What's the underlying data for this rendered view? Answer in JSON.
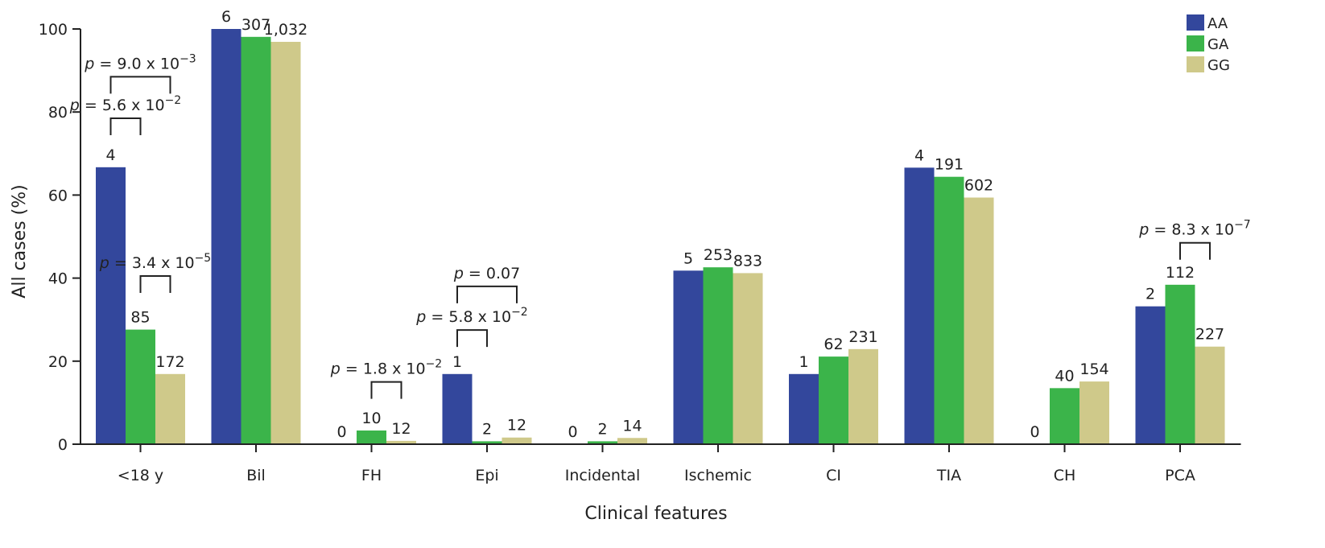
{
  "chart_data": {
    "type": "bar",
    "xlabel": "Clinical features",
    "ylabel": "All cases (%)",
    "ylim": [
      0,
      100
    ],
    "yticks": [
      0,
      20,
      40,
      60,
      80,
      100
    ],
    "grid": false,
    "legend_position": "top-right",
    "categories": [
      "<18 y",
      "Bil",
      "FH",
      "Epi",
      "Incidental",
      "Ischemic",
      "CI",
      "TIA",
      "CH",
      "PCA"
    ],
    "series": [
      {
        "name": "AA",
        "color": "#33479C",
        "values": [
          66.7,
          100,
          0,
          16.9,
          0,
          41.8,
          16.9,
          66.6,
          0,
          33.2
        ],
        "labels": [
          "4",
          "6",
          "0",
          "1",
          "0",
          "5",
          "1",
          "4",
          "0",
          "2"
        ]
      },
      {
        "name": "GA",
        "color": "#3BB44A",
        "values": [
          27.6,
          98.1,
          3.3,
          0.7,
          0.7,
          42.6,
          21.1,
          64.4,
          13.5,
          38.4
        ],
        "labels": [
          "85",
          "307",
          "10",
          "2",
          "2",
          "253",
          "62",
          "191",
          "40",
          "112"
        ]
      },
      {
        "name": "GG",
        "color": "#CFC98A",
        "values": [
          16.9,
          96.9,
          0.8,
          1.6,
          1.5,
          41.2,
          22.9,
          59.4,
          15.1,
          23.5
        ],
        "labels": [
          "172",
          "1,032",
          "12",
          "12",
          "14",
          "833",
          "231",
          "602",
          "154",
          "227"
        ]
      }
    ],
    "annotations": [
      {
        "category": "<18 y",
        "from": "AA",
        "to": "GG",
        "y": 88.5,
        "p_value": "9.0 x 10",
        "exponent": "−3"
      },
      {
        "category": "<18 y",
        "from": "AA",
        "to": "GA",
        "y": 78.5,
        "p_value": "5.6 x 10",
        "exponent": "−2"
      },
      {
        "category": "<18 y",
        "from": "GA",
        "to": "GG",
        "y": 40.5,
        "p_value": "3.4 x 10",
        "exponent": "−5"
      },
      {
        "category": "FH",
        "from": "GA",
        "to": "GG",
        "y": 15,
        "p_value": "1.8 x 10",
        "exponent": "−2"
      },
      {
        "category": "Epi",
        "from": "AA",
        "to": "GA",
        "y": 27.5,
        "p_value": "5.8 x 10",
        "exponent": "−2"
      },
      {
        "category": "Epi",
        "from": "AA",
        "to": "GG",
        "y": 38,
        "p_value": "0.07",
        "exponent": ""
      },
      {
        "category": "PCA",
        "from": "GA",
        "to": "GG",
        "y": 48.5,
        "p_value": "8.3 x 10",
        "exponent": "−7"
      }
    ]
  }
}
